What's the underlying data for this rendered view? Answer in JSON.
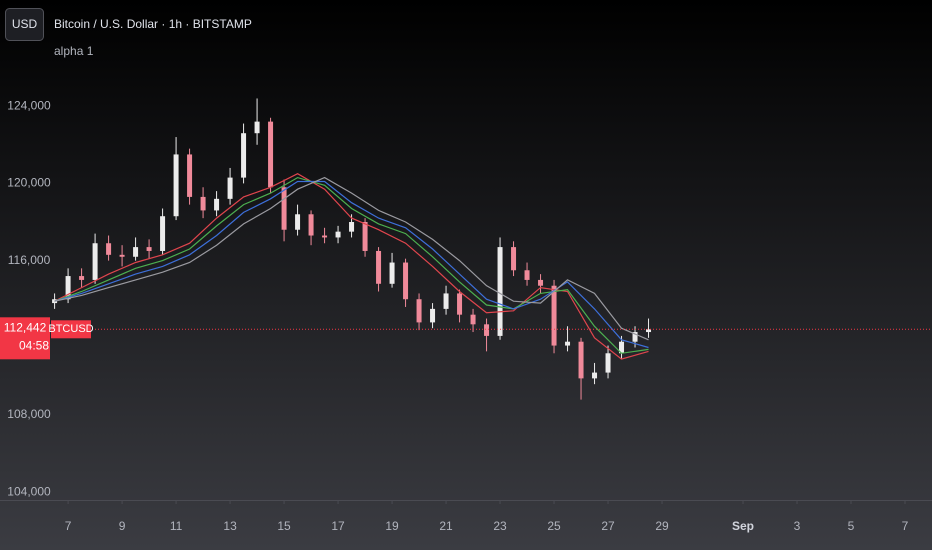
{
  "chart_data": {
    "type": "candlestick",
    "currency": "USD",
    "title": "Bitcoin / U.S. Dollar · 1h · BITSTAMP",
    "subtitle": "alpha 1",
    "symbol": "BTCUSD",
    "countdown": "04:58",
    "up_color": "#ececec",
    "down_color": "#f08a9a",
    "x": [
      6.5,
      7,
      7.5,
      8,
      8.5,
      9,
      9.5,
      10,
      10.5,
      11,
      11.5,
      12,
      12.5,
      13,
      13.5,
      14,
      14.5,
      15,
      15.5,
      16,
      16.5,
      17,
      17.5,
      18,
      18.5,
      19,
      19.5,
      20,
      20.5,
      21,
      21.5,
      22,
      22.5,
      23,
      23.5,
      24,
      24.5,
      25,
      25.5,
      26,
      26.5,
      27,
      27.5,
      28,
      28.5
    ],
    "open": [
      113800,
      114000,
      115200,
      115000,
      116900,
      116300,
      116200,
      116700,
      116500,
      118300,
      121500,
      119300,
      118600,
      119200,
      120300,
      122600,
      123200,
      119800,
      117600,
      118400,
      117300,
      117200,
      117500,
      118000,
      116500,
      114800,
      115900,
      114000,
      112800,
      113500,
      114300,
      113200,
      112700,
      112100,
      116700,
      115500,
      115000,
      114700,
      111600,
      111800,
      109900,
      110200,
      111200,
      111800,
      112300
    ],
    "high": [
      114300,
      115600,
      115600,
      117400,
      117300,
      116800,
      117200,
      117100,
      118700,
      122400,
      121800,
      119800,
      119600,
      120800,
      123100,
      124400,
      123400,
      120200,
      118900,
      118600,
      117700,
      117800,
      118400,
      118200,
      116700,
      116400,
      116100,
      114300,
      113800,
      114700,
      114500,
      113500,
      113000,
      117200,
      117000,
      115900,
      115300,
      115000,
      112600,
      112000,
      110700,
      111600,
      112100,
      112600,
      113000
    ],
    "low": [
      113500,
      113800,
      114600,
      114800,
      116000,
      115700,
      116000,
      116100,
      116300,
      118100,
      118900,
      118200,
      118300,
      118900,
      120000,
      122000,
      119500,
      117000,
      117300,
      116800,
      116900,
      116900,
      117200,
      116200,
      114400,
      114600,
      113600,
      112400,
      112500,
      113200,
      112800,
      112300,
      111300,
      111900,
      115200,
      114700,
      114300,
      111200,
      111300,
      108800,
      109600,
      109900,
      110900,
      111500,
      112000
    ],
    "close": [
      114000,
      115200,
      115000,
      116900,
      116300,
      116200,
      116700,
      116500,
      118300,
      121500,
      119300,
      118600,
      119200,
      120300,
      122600,
      123200,
      119800,
      117600,
      118400,
      117300,
      117200,
      117500,
      118000,
      116500,
      114800,
      115900,
      114000,
      112800,
      113500,
      114300,
      113200,
      112700,
      112100,
      116700,
      115500,
      115000,
      114700,
      111600,
      111800,
      109900,
      110200,
      111200,
      111800,
      112300,
      112442
    ],
    "lines": {
      "type": "line",
      "x": [
        6.5,
        7.5,
        8.5,
        9.5,
        10.5,
        11.5,
        12.5,
        13.5,
        14.5,
        15.5,
        16.5,
        17.5,
        18.5,
        19.5,
        20.5,
        21.5,
        22.5,
        23.5,
        24.5,
        25.5,
        26.5,
        27.5,
        28.5
      ],
      "series": [
        {
          "color": "#e0454d",
          "values": [
            113900,
            114600,
            115300,
            115900,
            116300,
            116900,
            118200,
            119300,
            119800,
            120500,
            119700,
            118200,
            117600,
            116900,
            115700,
            114400,
            113300,
            113400,
            114600,
            114400,
            112000,
            110900,
            111300
          ]
        },
        {
          "color": "#4caf50",
          "values": [
            113900,
            114400,
            115000,
            115600,
            116000,
            116600,
            117800,
            118900,
            119500,
            120300,
            119900,
            118700,
            117900,
            117400,
            116200,
            114900,
            113700,
            113500,
            114300,
            114500,
            112600,
            111200,
            111400
          ]
        },
        {
          "color": "#3d6fd9",
          "values": [
            113900,
            114300,
            114800,
            115300,
            115700,
            116300,
            117300,
            118500,
            119200,
            120100,
            120100,
            119000,
            118200,
            117700,
            116600,
            115300,
            114000,
            113500,
            114000,
            114900,
            113500,
            111900,
            111500
          ]
        },
        {
          "color": "#9a9aa0",
          "values": [
            113900,
            114200,
            114600,
            115000,
            115400,
            115900,
            116800,
            117900,
            118700,
            119700,
            120300,
            119500,
            118600,
            118000,
            117100,
            116000,
            114700,
            113900,
            113800,
            115000,
            114300,
            112500,
            111900
          ]
        }
      ]
    },
    "last_price": {
      "value": 112442,
      "label": "112,442",
      "color": "#f23645"
    },
    "xlim": [
      6.33,
      39
    ],
    "ylim": [
      103600,
      129500
    ],
    "xticks": [
      7,
      9,
      11,
      13,
      15,
      17,
      19,
      21,
      23,
      25,
      27,
      29,
      {
        "value": 32,
        "label": "Sep"
      },
      {
        "value": 34,
        "label": "3"
      },
      {
        "value": 36,
        "label": "5"
      },
      {
        "value": 38,
        "label": "7"
      }
    ],
    "yticks": [
      {
        "value": 104000,
        "label": "104,000"
      },
      {
        "value": 108000,
        "label": "108,000"
      },
      {
        "value": 116000,
        "label": "116,000"
      },
      {
        "value": 120000,
        "label": "120,000"
      },
      {
        "value": 124000,
        "label": "124,000"
      }
    ]
  }
}
